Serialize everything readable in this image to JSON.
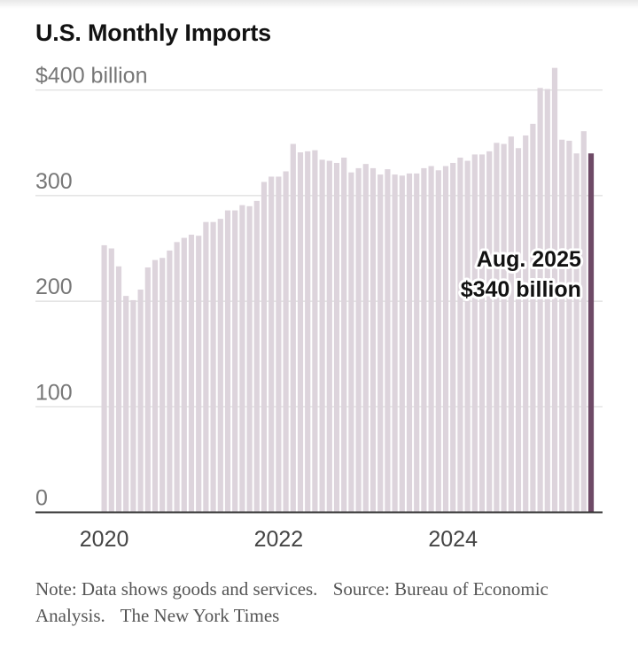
{
  "chart_data": {
    "type": "bar",
    "title": "U.S. Monthly Imports",
    "unit_label": "$400 billion",
    "y_ticks": [
      {
        "value": 400,
        "label": "$400 billion"
      },
      {
        "value": 300,
        "label": "300"
      },
      {
        "value": 200,
        "label": "200"
      },
      {
        "value": 100,
        "label": "100"
      },
      {
        "value": 0,
        "label": "0"
      }
    ],
    "x_ticks": [
      {
        "index": 0,
        "label": "2020"
      },
      {
        "index": 24,
        "label": "2022"
      },
      {
        "index": 48,
        "label": "2024"
      }
    ],
    "ylim": [
      0,
      420
    ],
    "start_month": "Jan. 2020",
    "end_month": "Aug. 2025",
    "values": [
      253,
      250,
      233,
      205,
      201,
      211,
      232,
      239,
      241,
      248,
      256,
      260,
      263,
      262,
      275,
      275,
      278,
      286,
      286,
      291,
      290,
      295,
      313,
      318,
      318,
      323,
      349,
      341,
      342,
      343,
      334,
      333,
      331,
      336,
      322,
      326,
      330,
      326,
      320,
      325,
      320,
      319,
      321,
      321,
      326,
      328,
      324,
      328,
      331,
      336,
      333,
      339,
      339,
      342,
      350,
      349,
      356,
      345,
      357,
      368,
      402,
      401,
      421,
      353,
      352,
      340,
      361,
      340
    ],
    "highlight": {
      "index": 67,
      "label_line1": "Aug. 2025",
      "label_line2": "$340 billion"
    },
    "colors": {
      "bar": "#ddd4dc",
      "highlight": "#6e4a66",
      "grid": "#dcdcdc",
      "axis": "#333333",
      "tick_text": "#777777"
    }
  },
  "footer": {
    "note": "Note: Data shows goods and services.",
    "source": "Source: Bureau of Economic Analysis.",
    "credit": "The New York Times"
  }
}
